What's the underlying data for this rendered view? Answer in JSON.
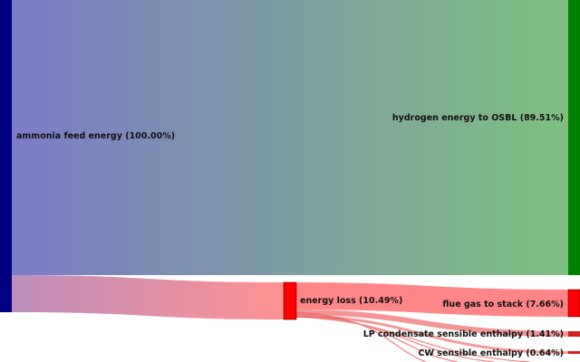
{
  "colors": {
    "source_node": "#000080",
    "hydrogen_node": "#008000",
    "loss_node": "#ff0000",
    "main_link_start": "#7b7bc6",
    "main_link_end": "#7fc07f",
    "loss_link_start": "#b07ab0",
    "loss_link_end": "#ff7f7f",
    "small_link": "#e85a5a"
  },
  "nodes": {
    "ammonia_feed": {
      "label": "ammonia feed energy (100.00%)",
      "value": 100.0
    },
    "hydrogen_osbl": {
      "label": "hydrogen energy to OSBL (89.51%)",
      "value": 89.51
    },
    "energy_loss": {
      "label": "energy loss (10.49%)",
      "value": 10.49
    },
    "flue_gas": {
      "label": "flue gas to stack (7.66%)",
      "value": 7.66
    },
    "lp_condensate": {
      "label": "LP condensate sensible enthalpy (1.41%)",
      "value": 1.41
    },
    "cw_sensible": {
      "label": "CW sensible enthalpy (0.64%)",
      "value": 0.64
    }
  },
  "links": [
    {
      "from": "ammonia feed energy",
      "to": "hydrogen energy to OSBL",
      "value": 89.51
    },
    {
      "from": "ammonia feed energy",
      "to": "energy loss",
      "value": 10.49
    },
    {
      "from": "energy loss",
      "to": "flue gas to stack",
      "value": 7.66
    },
    {
      "from": "energy loss",
      "to": "LP condensate sensible enthalpy",
      "value": 1.41
    },
    {
      "from": "energy loss",
      "to": "CW sensible enthalpy",
      "value": 0.64
    }
  ]
}
